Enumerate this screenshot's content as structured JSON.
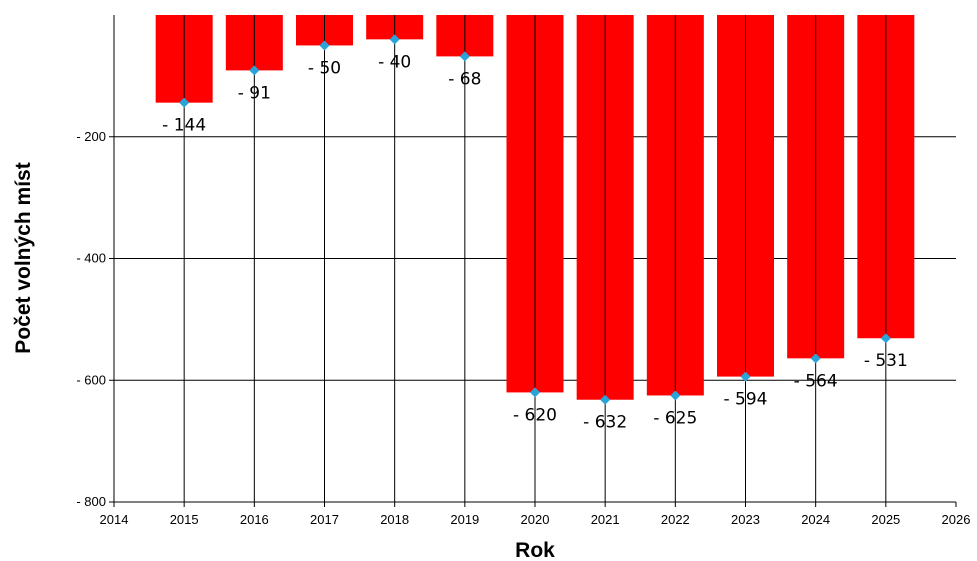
{
  "chart_data": {
    "type": "bar",
    "xlabel": "Rok",
    "ylabel": "Počet volných míst",
    "x": [
      2015,
      2016,
      2017,
      2018,
      2019,
      2020,
      2021,
      2022,
      2023,
      2024,
      2025
    ],
    "values": [
      -144,
      -91,
      -50,
      -40,
      -68,
      -620,
      -632,
      -625,
      -594,
      -564,
      -531
    ],
    "data_labels": [
      "- 144",
      "- 91",
      "- 50",
      "- 40",
      "- 68",
      "- 620",
      "- 632",
      "- 625",
      "- 594",
      "- 564",
      "- 531"
    ],
    "xlim": [
      2014,
      2026
    ],
    "ylim": [
      -800,
      0
    ],
    "x_ticks": [
      "2014",
      "2015",
      "2016",
      "2017",
      "2018",
      "2019",
      "2020",
      "2021",
      "2022",
      "2023",
      "2024",
      "2025",
      "2026"
    ],
    "y_ticks": [
      {
        "value": -200,
        "label": "- 200"
      },
      {
        "value": -400,
        "label": "- 400"
      },
      {
        "value": -600,
        "label": "- 600"
      },
      {
        "value": -800,
        "label": "- 800"
      }
    ],
    "colors": {
      "bar": "#ff0000",
      "marker": "#29a3d8",
      "axis": "#000000"
    },
    "grid": true,
    "legend": "none"
  }
}
